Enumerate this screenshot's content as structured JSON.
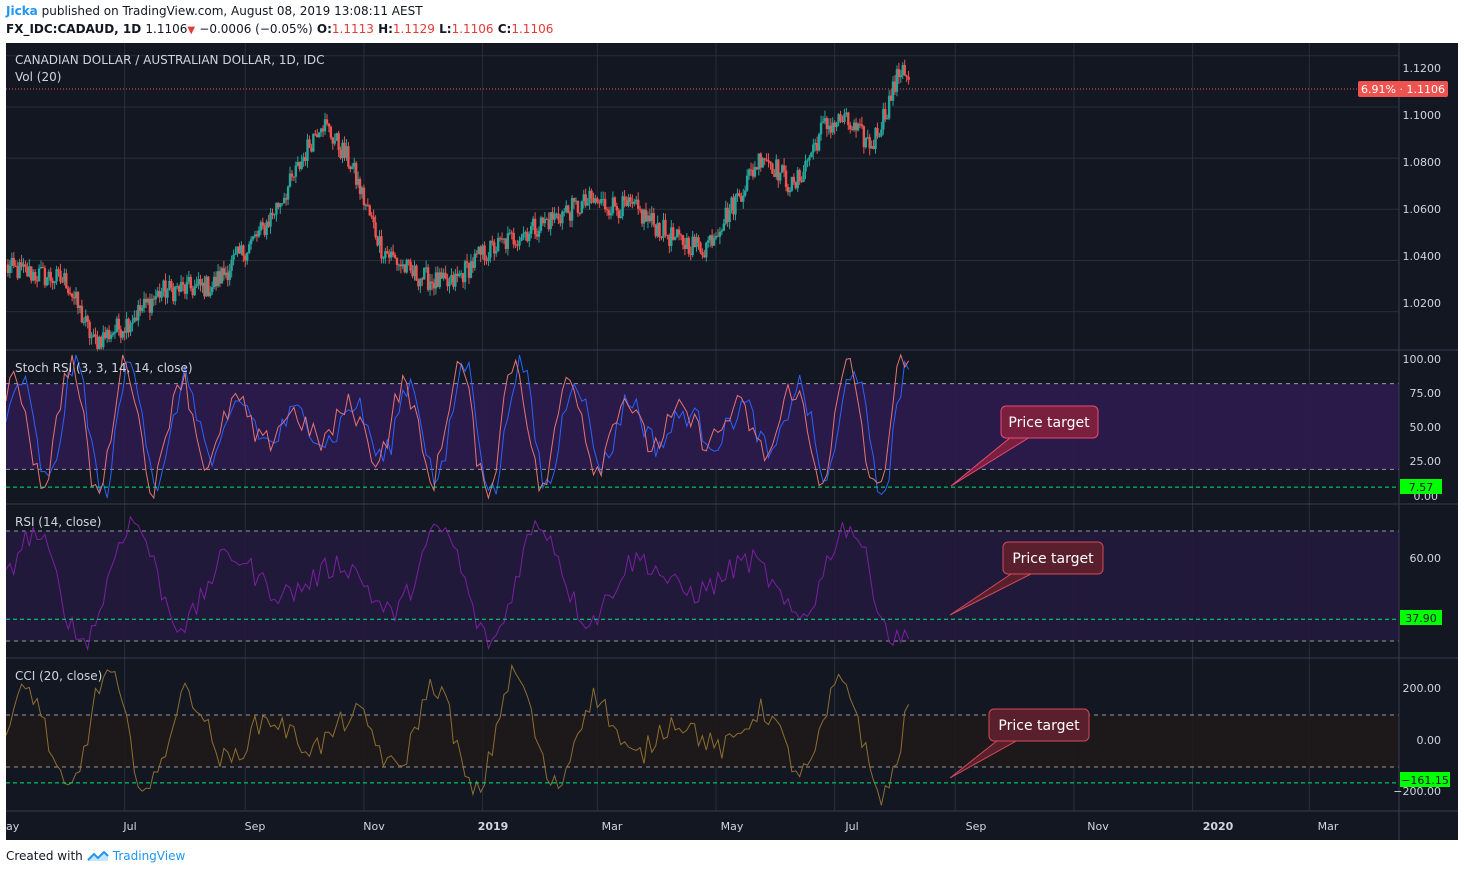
{
  "header": {
    "author": "Jicka",
    "published_text": "published on TradingView.com, August 08, 2019 13:08:11 AEST",
    "symbol": "FX_IDC:CADAUD, 1D",
    "last": "1.1106",
    "arrow": "▼",
    "change": "−0.0006 (−0.05%)",
    "o_label": "O:",
    "o": "1.1113",
    "h_label": "H:",
    "h": "1.1129",
    "l_label": "L:",
    "l": "1.1106",
    "c_label": "C:",
    "c": "1.1106"
  },
  "main_pane": {
    "title": "CANADIAN DOLLAR / AUSTRALIAN DOLLAR, 1D, IDC",
    "subtitle": "Vol (20)",
    "price_badge": "6.91% · 1.1106",
    "yticks": [
      "1.1200",
      "1.1000",
      "1.0800",
      "1.0600",
      "1.0400",
      "1.0200"
    ]
  },
  "stoch_pane": {
    "title": "Stoch RSI (3, 3, 14, 14, close)",
    "yticks": [
      "100.00",
      "75.00",
      "50.00",
      "25.00",
      "0.00"
    ],
    "target_value": "7.57",
    "annotation": "Price target"
  },
  "rsi_pane": {
    "title": "RSI (14, close)",
    "yticks": [
      "60.00"
    ],
    "target_value": "37.90",
    "annotation": "Price target"
  },
  "cci_pane": {
    "title": "CCI (20, close)",
    "yticks": [
      "200.00",
      "0.00",
      "−200.00"
    ],
    "target_value": "−161.15",
    "annotation": "Price target"
  },
  "x_axis": {
    "labels": [
      "ay",
      "Jul",
      "Sep",
      "Nov",
      "2019",
      "Mar",
      "May",
      "Jul",
      "Sep",
      "Nov",
      "2020",
      "Mar"
    ]
  },
  "footer": {
    "created_with": "Created with",
    "brand": "TradingView"
  },
  "chart_data": {
    "type": "candlestick",
    "symbol": "CADAUD",
    "interval": "1D",
    "x_range": [
      "2018-05",
      "2020-03"
    ],
    "price_path": {
      "dates": [
        "2018-05",
        "2018-06-01",
        "2018-06-15",
        "2018-07-01",
        "2018-07-20",
        "2018-08-15",
        "2018-09-10",
        "2018-09-25",
        "2018-10-10",
        "2018-10-25",
        "2018-11-10",
        "2018-11-25",
        "2018-12-15",
        "2018-12-31",
        "2019-01-20",
        "2019-02-10",
        "2019-02-25",
        "2019-03-20",
        "2019-04-10",
        "2019-04-25",
        "2019-05-10",
        "2019-05-25",
        "2019-06-10",
        "2019-06-25",
        "2019-07-05",
        "2019-07-20",
        "2019-07-28",
        "2019-08-05",
        "2019-08-08"
      ],
      "values": [
        1.037,
        1.032,
        1.008,
        1.015,
        1.028,
        1.03,
        1.052,
        1.071,
        1.095,
        1.078,
        1.045,
        1.035,
        1.03,
        1.042,
        1.05,
        1.058,
        1.063,
        1.06,
        1.048,
        1.045,
        1.062,
        1.082,
        1.068,
        1.092,
        1.095,
        1.085,
        1.1,
        1.117,
        1.1106
      ]
    },
    "ylim": [
      1.005,
      1.125
    ],
    "last_price": 1.1106,
    "indicators": {
      "stoch_rsi": {
        "ylim": [
          0,
          100
        ],
        "bands": [
          20,
          80
        ],
        "target": 7.57
      },
      "rsi": {
        "ylim": [
          26,
          78
        ],
        "bands": [
          30,
          70
        ],
        "target": 37.9
      },
      "cci": {
        "ylim": [
          -250,
          300
        ],
        "bands": [
          -100,
          100
        ],
        "target": -161.15
      }
    }
  }
}
